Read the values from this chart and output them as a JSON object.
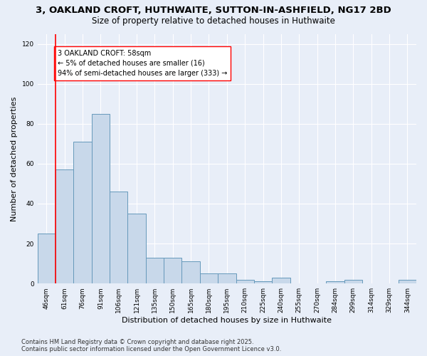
{
  "title_line1": "3, OAKLAND CROFT, HUTHWAITE, SUTTON-IN-ASHFIELD, NG17 2BD",
  "title_line2": "Size of property relative to detached houses in Huthwaite",
  "xlabel": "Distribution of detached houses by size in Huthwaite",
  "ylabel": "Number of detached properties",
  "categories": [
    "46sqm",
    "61sqm",
    "76sqm",
    "91sqm",
    "106sqm",
    "121sqm",
    "135sqm",
    "150sqm",
    "165sqm",
    "180sqm",
    "195sqm",
    "210sqm",
    "225sqm",
    "240sqm",
    "255sqm",
    "270sqm",
    "284sqm",
    "299sqm",
    "314sqm",
    "329sqm",
    "344sqm"
  ],
  "values": [
    25,
    57,
    71,
    85,
    46,
    35,
    13,
    13,
    11,
    5,
    5,
    2,
    1,
    3,
    0,
    0,
    1,
    2,
    0,
    0,
    2
  ],
  "bar_color": "#c8d8ea",
  "bar_edge_color": "#6699bb",
  "annotation_box_text": "3 OAKLAND CROFT: 58sqm\n← 5% of detached houses are smaller (16)\n94% of semi-detached houses are larger (333) →",
  "red_line_x": 0.5,
  "ylim": [
    0,
    125
  ],
  "yticks": [
    0,
    20,
    40,
    60,
    80,
    100,
    120
  ],
  "background_color": "#e8eef8",
  "plot_background": "#e8eef8",
  "grid_color": "#ffffff",
  "footnote": "Contains HM Land Registry data © Crown copyright and database right 2025.\nContains public sector information licensed under the Open Government Licence v3.0.",
  "title_fontsize": 9.5,
  "subtitle_fontsize": 8.5,
  "axis_label_fontsize": 8,
  "tick_fontsize": 6.5,
  "annot_fontsize": 7,
  "footnote_fontsize": 6
}
